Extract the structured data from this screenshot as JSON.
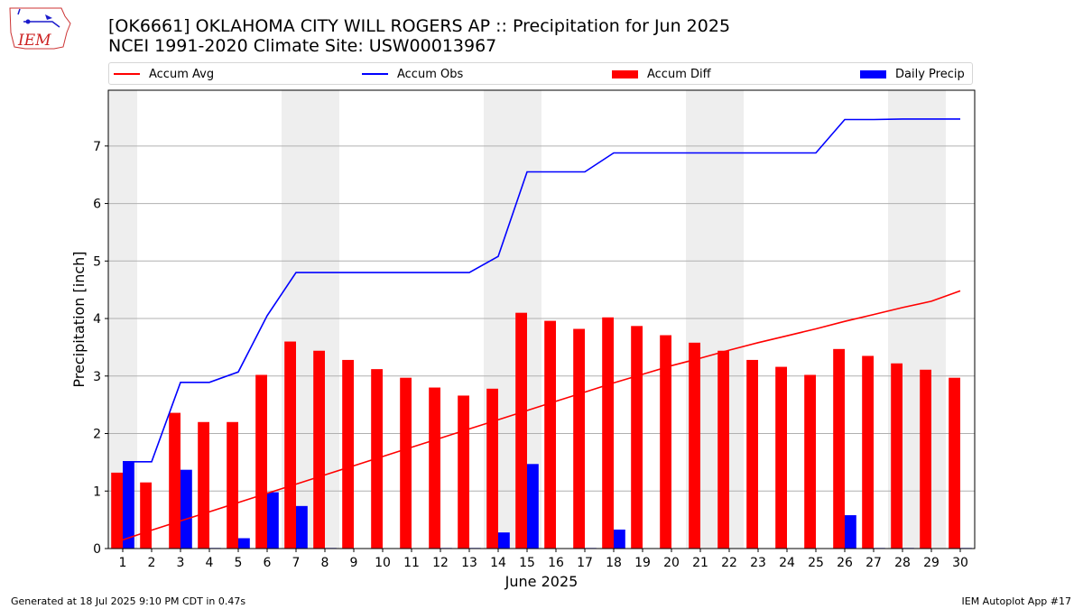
{
  "header": {
    "title": "[OK6661] OKLAHOMA CITY WILL ROGERS AP :: Precipitation for Jun 2025",
    "subtitle": "NCEI 1991-2020 Climate Site: USW00013967",
    "logo_text": "IEM"
  },
  "legend": {
    "items": [
      {
        "label": "Accum Avg",
        "kind": "line",
        "color": "#ff0000"
      },
      {
        "label": "Accum Obs",
        "kind": "line",
        "color": "#0000ff"
      },
      {
        "label": "Accum Diff",
        "kind": "bar",
        "color": "#ff0000"
      },
      {
        "label": "Daily Precip",
        "kind": "bar",
        "color": "#0000ff"
      }
    ]
  },
  "footer": {
    "left": "Generated at 18 Jul 2025 9:10 PM CDT in 0.47s",
    "right": "IEM Autoplot App #17"
  },
  "chart_data": {
    "type": "bar",
    "xlabel": "June 2025",
    "ylabel": "Precipitation [inch]",
    "ylim": [
      0,
      7.97
    ],
    "xlim": [
      0.5,
      30.5
    ],
    "yticks": [
      0,
      1,
      2,
      3,
      4,
      5,
      6,
      7
    ],
    "x": [
      1,
      2,
      3,
      4,
      5,
      6,
      7,
      8,
      9,
      10,
      11,
      12,
      13,
      14,
      15,
      16,
      17,
      18,
      19,
      20,
      21,
      22,
      23,
      24,
      25,
      26,
      27,
      28,
      29,
      30
    ],
    "shaded_days": [
      1,
      7,
      8,
      14,
      15,
      21,
      22,
      28,
      29
    ],
    "grid": "horizontal",
    "legend_position": "top",
    "series": [
      {
        "name": "Accum Avg",
        "type": "line",
        "color": "#ff0000",
        "values": [
          0.15,
          0.32,
          0.48,
          0.64,
          0.8,
          0.96,
          1.12,
          1.28,
          1.44,
          1.6,
          1.76,
          1.92,
          2.08,
          2.24,
          2.4,
          2.56,
          2.72,
          2.88,
          3.03,
          3.18,
          3.31,
          3.45,
          3.58,
          3.7,
          3.82,
          3.95,
          4.07,
          4.19,
          4.3,
          4.48
        ]
      },
      {
        "name": "Accum Obs",
        "type": "line",
        "color": "#0000ff",
        "values": [
          1.51,
          1.51,
          2.89,
          2.89,
          3.07,
          4.05,
          4.8,
          4.8,
          4.8,
          4.8,
          4.8,
          4.8,
          4.8,
          5.08,
          6.55,
          6.55,
          6.55,
          6.88,
          6.88,
          6.88,
          6.88,
          6.88,
          6.88,
          6.88,
          6.88,
          7.46,
          7.46,
          7.47,
          7.47,
          7.47
        ]
      },
      {
        "name": "Accum Diff",
        "type": "bar",
        "color": "#ff0000",
        "values": [
          1.32,
          1.15,
          2.36,
          2.2,
          2.2,
          3.02,
          3.6,
          3.44,
          3.28,
          3.12,
          2.97,
          2.8,
          2.66,
          2.78,
          4.1,
          3.96,
          3.82,
          4.02,
          3.87,
          3.71,
          3.58,
          3.44,
          3.28,
          3.16,
          3.02,
          3.47,
          3.35,
          3.22,
          3.11,
          2.97
        ]
      },
      {
        "name": "Daily Precip",
        "type": "bar",
        "color": "#0000ff",
        "values": [
          1.51,
          0,
          1.37,
          0.01,
          0.18,
          0.98,
          0.74,
          0.01,
          0,
          0,
          0,
          0.01,
          0.01,
          0.28,
          1.47,
          0,
          0.01,
          0.33,
          0,
          0,
          0,
          0,
          0,
          0,
          0,
          0.58,
          0.01,
          0.01,
          0,
          0.01
        ]
      }
    ]
  }
}
